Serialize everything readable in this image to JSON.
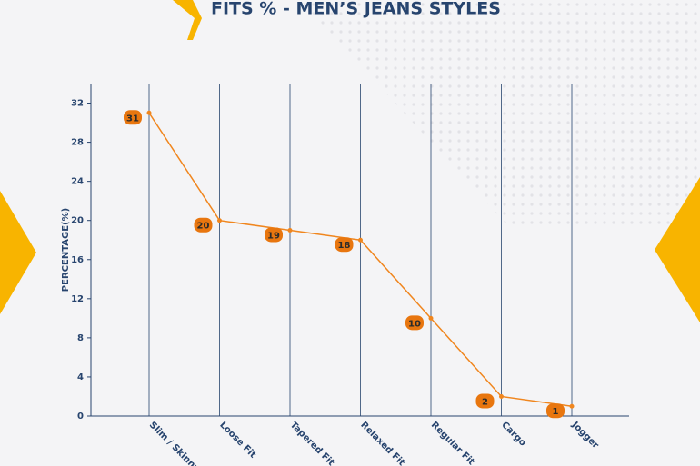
{
  "chart_data": {
    "type": "line",
    "title": "FITS % - MEN’S JEANS STYLES",
    "y_label": "PERCENTAGE(%)",
    "categories": [
      "Slim / Skinny",
      "Loose Fit",
      "Tapered Fit",
      "Relaxed Fit",
      "Regular Fit",
      "Cargo",
      "Jogger"
    ],
    "values": [
      31,
      20,
      19,
      18,
      10,
      2,
      1
    ],
    "color": "#f0861e",
    "ylim": [
      0,
      34
    ],
    "yticks": [
      0,
      4,
      8,
      12,
      16,
      20,
      24,
      28,
      32
    ],
    "grid": true
  }
}
